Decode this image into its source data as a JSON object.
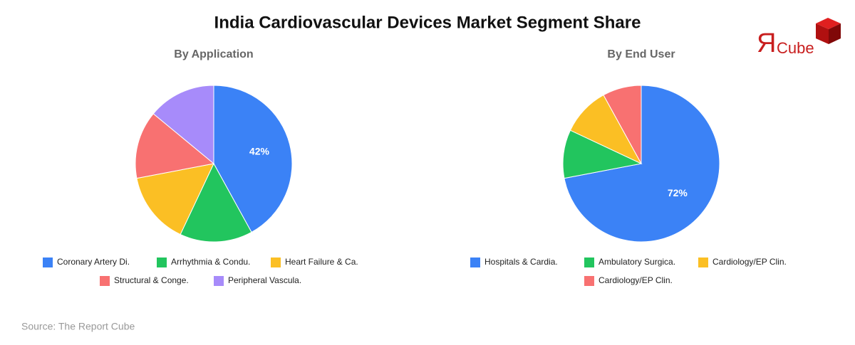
{
  "title": "India Cardiovascular Devices Market Segment Share",
  "logo": {
    "mark": "Я",
    "text": "Cube"
  },
  "source": "Source: The Report Cube",
  "chart_data": [
    {
      "type": "pie",
      "title": "By Application",
      "categories": [
        "Coronary Artery Di.",
        "Arrhythmia & Condu.",
        "Heart Failure & Ca.",
        "Structural & Conge.",
        "Peripheral Vascula."
      ],
      "values": [
        42,
        15,
        15,
        14,
        14
      ],
      "value_labels": [
        "42%",
        null,
        null,
        null,
        null
      ],
      "colors": [
        "#3b82f6",
        "#22c55e",
        "#fbbf24",
        "#f87171",
        "#a78bfa"
      ]
    },
    {
      "type": "pie",
      "title": "By End User",
      "categories": [
        "Hospitals & Cardia.",
        "Ambulatory Surgica.",
        "Cardiology/EP Clin.",
        "Cardiology/EP Clin."
      ],
      "values": [
        72,
        10,
        10,
        8
      ],
      "value_labels": [
        "72%",
        null,
        null,
        null
      ],
      "colors": [
        "#3b82f6",
        "#22c55e",
        "#fbbf24",
        "#f87171"
      ]
    }
  ]
}
